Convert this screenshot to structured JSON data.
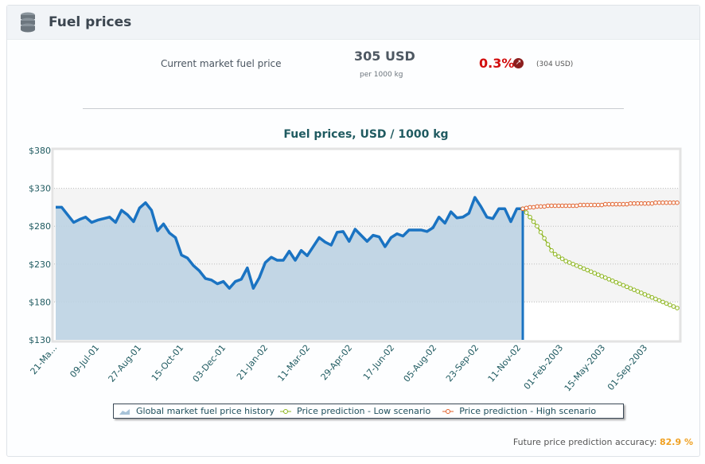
{
  "header": {
    "title": "Fuel prices",
    "icon": "database-icon"
  },
  "summary": {
    "label": "Current market fuel price",
    "price": "305 USD",
    "unit": "per 1000 kg",
    "change": "0.3%",
    "previous": "(304 USD)",
    "change_icon": "arrow-up-right-icon"
  },
  "accuracy": {
    "label": "Future price prediction accuracy:",
    "value": "82.9 %"
  },
  "chart_data": {
    "type": "line",
    "title": "Fuel prices, USD / 1000 kg",
    "ylim": [
      130,
      380
    ],
    "yticks": [
      "$380",
      "$330",
      "$280",
      "$230",
      "$180",
      "$130"
    ],
    "ytick_values": [
      380,
      330,
      280,
      230,
      180,
      130
    ],
    "xticks": [
      "21-Ma...",
      "09-Jul-01",
      "27-Aug-01",
      "15-Oct-01",
      "03-Dec-01",
      "21-Jan-02",
      "11-Mar-02",
      "29-Apr-02",
      "17-Jun-02",
      "05-Aug-02",
      "23-Sep-02",
      "11-Nov-02",
      "01-Feb-2003",
      "15-May-2003",
      "01-Sep-2003"
    ],
    "legend_position": "bottom",
    "series": [
      {
        "name": "Global market fuel price history",
        "color": "#1a73c2",
        "fill": "#bcd3e3",
        "type": "area",
        "values": [
          305,
          305,
          295,
          285,
          289,
          292,
          285,
          288,
          290,
          292,
          285,
          301,
          295,
          286,
          304,
          311,
          301,
          274,
          283,
          271,
          265,
          242,
          238,
          228,
          221,
          211,
          209,
          204,
          207,
          198,
          207,
          210,
          225,
          198,
          212,
          232,
          239,
          235,
          235,
          247,
          235,
          248,
          241,
          253,
          265,
          259,
          255,
          272,
          273,
          260,
          276,
          268,
          260,
          268,
          266,
          253,
          265,
          270,
          267,
          275,
          275,
          275,
          273,
          278,
          292,
          284,
          299,
          291,
          292,
          297,
          318,
          306,
          292,
          290,
          303,
          303,
          286,
          303,
          303
        ]
      },
      {
        "name": "Price prediction - Low scenario",
        "color": "#8db51e",
        "type": "line",
        "values": [
          303,
          298,
          292,
          286,
          280,
          272,
          264,
          256,
          248,
          243,
          240,
          237,
          234,
          232,
          230,
          228,
          226,
          224,
          222,
          220,
          218,
          216,
          214,
          212,
          210,
          208,
          206,
          204,
          202,
          200,
          198,
          196,
          194,
          192,
          190,
          188,
          186,
          184,
          182,
          180,
          178,
          176,
          174,
          172
        ]
      },
      {
        "name": "Price prediction - High scenario",
        "color": "#e1602a",
        "type": "line",
        "values": [
          303,
          304,
          305,
          305,
          306,
          306,
          306,
          307,
          307,
          307,
          307,
          307,
          307,
          307,
          307,
          307,
          308,
          308,
          308,
          308,
          308,
          308,
          308,
          309,
          309,
          309,
          309,
          309,
          309,
          309,
          310,
          310,
          310,
          310,
          310,
          310,
          310,
          311,
          311,
          311,
          311,
          311,
          311,
          311
        ]
      }
    ]
  }
}
